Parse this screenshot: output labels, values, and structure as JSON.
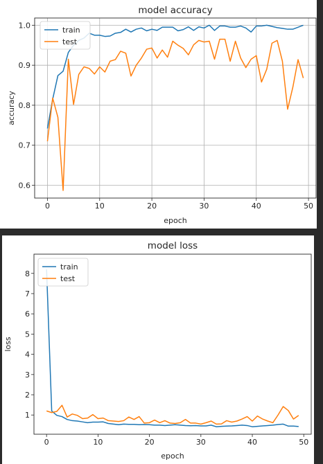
{
  "chart_data": [
    {
      "type": "line",
      "title": "model accuracy",
      "xlabel": "epoch",
      "ylabel": "accuracy",
      "xlim": [
        -2.45,
        51.45
      ],
      "ylim": [
        0.568,
        1.018
      ],
      "xticks": [
        0,
        10,
        20,
        30,
        40,
        50
      ],
      "yticks": [
        0.6,
        0.7,
        0.8,
        0.9,
        1.0
      ],
      "xtick_labels": [
        "0",
        "10",
        "20",
        "30",
        "40",
        "50"
      ],
      "ytick_labels": [
        "0.6",
        "0.7",
        "0.8",
        "0.9",
        "1.0"
      ],
      "grid": true,
      "legend_position": "upper-left",
      "x": [
        0,
        1,
        2,
        3,
        4,
        5,
        6,
        7,
        8,
        9,
        10,
        11,
        12,
        13,
        14,
        15,
        16,
        17,
        18,
        19,
        20,
        21,
        22,
        23,
        24,
        25,
        26,
        27,
        28,
        29,
        30,
        31,
        32,
        33,
        34,
        35,
        36,
        37,
        38,
        39,
        40,
        41,
        42,
        43,
        44,
        45,
        46,
        47,
        48,
        49
      ],
      "series": [
        {
          "name": "train",
          "color": "#1f77b4",
          "values": [
            0.742,
            0.815,
            0.874,
            0.885,
            0.932,
            0.95,
            0.962,
            0.968,
            0.98,
            0.975,
            0.975,
            0.972,
            0.973,
            0.98,
            0.982,
            0.99,
            0.983,
            0.99,
            0.993,
            0.986,
            0.99,
            0.987,
            0.995,
            0.995,
            0.995,
            0.986,
            0.989,
            0.996,
            0.987,
            0.996,
            0.993,
            1.0,
            0.987,
            0.998,
            0.998,
            0.995,
            0.995,
            0.998,
            0.993,
            0.983,
            0.998,
            0.998,
            1.0,
            0.997,
            0.994,
            0.992,
            0.99,
            0.99,
            0.995,
            1.0
          ]
        },
        {
          "name": "test",
          "color": "#ff7f0e",
          "values": [
            0.71,
            0.818,
            0.77,
            0.587,
            0.915,
            0.802,
            0.877,
            0.896,
            0.892,
            0.878,
            0.896,
            0.883,
            0.91,
            0.914,
            0.935,
            0.93,
            0.873,
            0.9,
            0.918,
            0.94,
            0.943,
            0.918,
            0.938,
            0.92,
            0.96,
            0.95,
            0.942,
            0.926,
            0.951,
            0.962,
            0.958,
            0.96,
            0.915,
            0.965,
            0.965,
            0.91,
            0.96,
            0.918,
            0.894,
            0.915,
            0.924,
            0.858,
            0.89,
            0.955,
            0.962,
            0.91,
            0.79,
            0.845,
            0.914,
            0.868
          ]
        }
      ]
    },
    {
      "type": "line",
      "title": "model loss",
      "xlabel": "epoch",
      "ylabel": "loss",
      "xlim": [
        -2.45,
        51.45
      ],
      "ylim": [
        0.05,
        8.95
      ],
      "xticks": [
        0,
        10,
        20,
        30,
        40,
        50
      ],
      "yticks": [
        1,
        2,
        3,
        4,
        5,
        6,
        7,
        8
      ],
      "xtick_labels": [
        "0",
        "10",
        "20",
        "30",
        "40",
        "50"
      ],
      "ytick_labels": [
        "1",
        "2",
        "3",
        "4",
        "5",
        "6",
        "7",
        "8"
      ],
      "grid": false,
      "legend_position": "upper-left",
      "x": [
        0,
        1,
        2,
        3,
        4,
        5,
        6,
        7,
        8,
        9,
        10,
        11,
        12,
        13,
        14,
        15,
        16,
        17,
        18,
        19,
        20,
        21,
        22,
        23,
        24,
        25,
        26,
        27,
        28,
        29,
        30,
        31,
        32,
        33,
        34,
        35,
        36,
        37,
        38,
        39,
        40,
        41,
        42,
        43,
        44,
        45,
        46,
        47,
        48,
        49
      ],
      "series": [
        {
          "name": "train",
          "color": "#1f77b4",
          "values": [
            8.2,
            1.2,
            0.98,
            0.92,
            0.78,
            0.72,
            0.7,
            0.66,
            0.62,
            0.65,
            0.65,
            0.66,
            0.58,
            0.55,
            0.52,
            0.55,
            0.54,
            0.54,
            0.52,
            0.53,
            0.52,
            0.5,
            0.5,
            0.48,
            0.5,
            0.52,
            0.5,
            0.48,
            0.47,
            0.48,
            0.46,
            0.46,
            0.5,
            0.42,
            0.44,
            0.45,
            0.46,
            0.48,
            0.5,
            0.48,
            0.42,
            0.44,
            0.46,
            0.48,
            0.5,
            0.53,
            0.55,
            0.45,
            0.45,
            0.43
          ]
        },
        {
          "name": "test",
          "color": "#ff7f0e",
          "values": [
            1.2,
            1.12,
            1.18,
            1.48,
            0.9,
            1.05,
            0.98,
            0.82,
            0.85,
            1.02,
            0.82,
            0.85,
            0.72,
            0.7,
            0.68,
            0.72,
            0.9,
            0.78,
            0.92,
            0.6,
            0.62,
            0.75,
            0.62,
            0.72,
            0.6,
            0.58,
            0.62,
            0.78,
            0.6,
            0.6,
            0.55,
            0.62,
            0.7,
            0.55,
            0.56,
            0.72,
            0.65,
            0.7,
            0.8,
            0.92,
            0.7,
            0.95,
            0.8,
            0.7,
            0.62,
            1.0,
            1.42,
            1.22,
            0.8,
            0.98
          ]
        }
      ]
    }
  ]
}
